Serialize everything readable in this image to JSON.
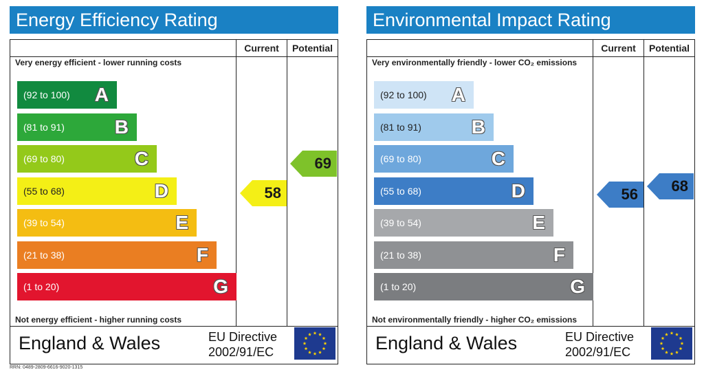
{
  "charts": [
    {
      "title": "Energy Efficiency Rating",
      "col_current": "Current",
      "col_potential": "Potential",
      "top_caption": "Very energy efficient - lower running costs",
      "bottom_caption": "Not energy efficient - higher running costs",
      "current": "58",
      "potential": "69",
      "region": "England & Wales",
      "directive_line1": "EU Directive",
      "directive_line2": "2002/91/EC",
      "bands": [
        {
          "range": "(92 to 100)",
          "letter": "A",
          "color": "#118a3f"
        },
        {
          "range": "(81 to 91)",
          "letter": "B",
          "color": "#2da83a"
        },
        {
          "range": "(69 to 80)",
          "letter": "C",
          "color": "#94c91a"
        },
        {
          "range": "(55 to 68)",
          "letter": "D",
          "color": "#f4ef16"
        },
        {
          "range": "(39 to 54)",
          "letter": "E",
          "color": "#f4bd12"
        },
        {
          "range": "(21 to 38)",
          "letter": "F",
          "color": "#ea7e22"
        },
        {
          "range": "(1 to 20)",
          "letter": "G",
          "color": "#e2152e"
        }
      ],
      "current_color": "#f4ef16",
      "potential_color": "#7ec22a"
    },
    {
      "title": "Environmental Impact Rating",
      "col_current": "Current",
      "col_potential": "Potential",
      "top_caption": "Very environmentally friendly - lower CO₂ emissions",
      "bottom_caption": "Not environmentally friendly - higher CO₂ emissions",
      "current": "56",
      "potential": "68",
      "region": "England & Wales",
      "directive_line1": "EU Directive",
      "directive_line2": "2002/91/EC",
      "bands": [
        {
          "range": "(92 to 100)",
          "letter": "A",
          "color": "#cfe4f6"
        },
        {
          "range": "(81 to 91)",
          "letter": "B",
          "color": "#9fcaec"
        },
        {
          "range": "(69 to 80)",
          "letter": "C",
          "color": "#6ea7dc"
        },
        {
          "range": "(55 to 68)",
          "letter": "D",
          "color": "#3d7dc6"
        },
        {
          "range": "(39 to 54)",
          "letter": "E",
          "color": "#a6a8ab"
        },
        {
          "range": "(21 to 38)",
          "letter": "F",
          "color": "#8f9194"
        },
        {
          "range": "(1 to 20)",
          "letter": "G",
          "color": "#7b7d80"
        }
      ],
      "current_color": "#3d7dc6",
      "potential_color": "#3d7dc6"
    }
  ],
  "chart_data": [
    {
      "type": "table",
      "title": "Energy Efficiency Rating",
      "categories": [
        "A",
        "B",
        "C",
        "D",
        "E",
        "F",
        "G"
      ],
      "ranges": [
        "(92 to 100)",
        "(81 to 91)",
        "(69 to 80)",
        "(55 to 68)",
        "(39 to 54)",
        "(21 to 38)",
        "(1 to 20)"
      ],
      "current": 58,
      "potential": 69
    },
    {
      "type": "table",
      "title": "Environmental Impact Rating",
      "categories": [
        "A",
        "B",
        "C",
        "D",
        "E",
        "F",
        "G"
      ],
      "ranges": [
        "(92 to 100)",
        "(81 to 91)",
        "(69 to 80)",
        "(55 to 68)",
        "(39 to 54)",
        "(21 to 38)",
        "(1 to 20)"
      ],
      "current": 56,
      "potential": 68
    }
  ],
  "rrn": "RRN: 0489-2809-6616-9020-1315"
}
